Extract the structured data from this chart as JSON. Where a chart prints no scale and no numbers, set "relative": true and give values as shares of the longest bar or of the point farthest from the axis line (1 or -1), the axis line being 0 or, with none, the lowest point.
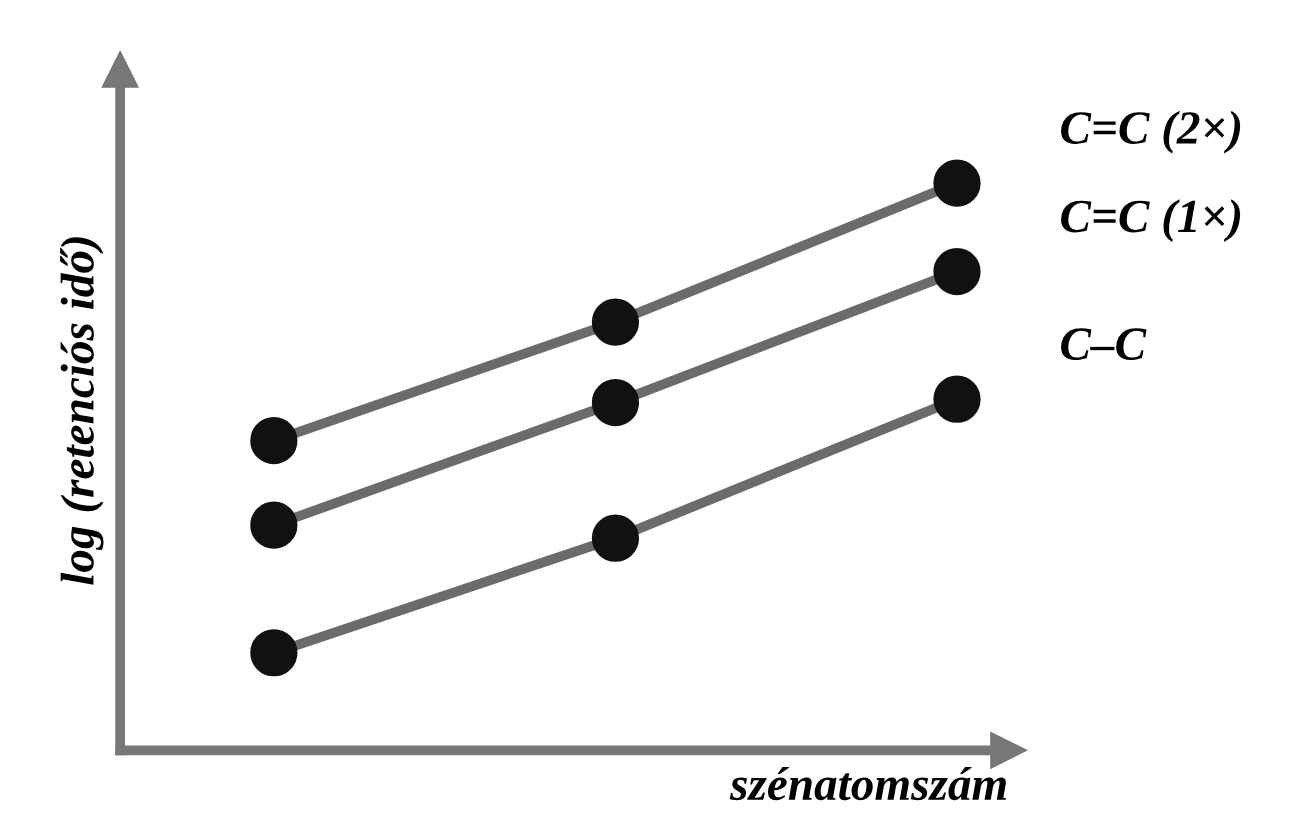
{
  "chart_data": {
    "type": "line",
    "relative": true,
    "xlabel": "szénatomszám",
    "ylabel": "log (retenciós idő)",
    "categories": [
      null,
      null,
      null
    ],
    "marker": "circle",
    "line_style": "solid",
    "legend": false,
    "series": [
      {
        "name": "C=C (2×)",
        "color": "#6b6b6b",
        "values": [
          0.546,
          0.755,
          1.0
        ]
      },
      {
        "name": "C=C (1×)",
        "color": "#6b6b6b",
        "values": [
          0.397,
          0.613,
          0.844
        ]
      },
      {
        "name": "C–C",
        "color": "#6b6b6b",
        "values": [
          0.172,
          0.374,
          0.619
        ]
      }
    ]
  }
}
